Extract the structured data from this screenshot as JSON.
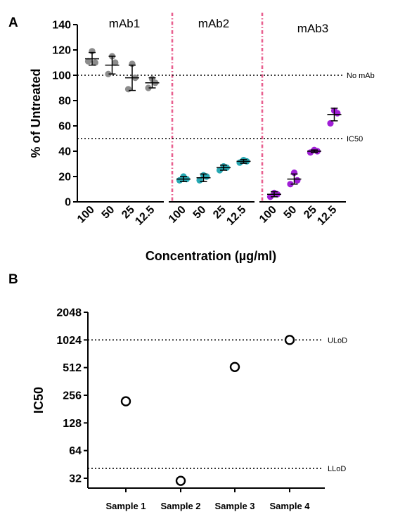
{
  "panels": {
    "a": "A",
    "b": "B"
  },
  "chart_data": [
    {
      "type": "scatter",
      "ylabel": "% of Untreated",
      "xlabel": "Concentration (µg/ml)",
      "ylim": [
        0,
        140
      ],
      "yticks": [
        "0",
        "20",
        "40",
        "60",
        "80",
        "100",
        "120",
        "140"
      ],
      "categories": [
        "100",
        "50",
        "25",
        "12.5"
      ],
      "reference_lines": [
        {
          "label": "No mAb",
          "y": 100
        },
        {
          "label": "IC50",
          "y": 50
        }
      ],
      "groups": [
        {
          "name": "mAb1",
          "color": "#8c8c8c",
          "points": [
            [
              111,
              110,
              119
            ],
            [
              101,
              110,
              115
            ],
            [
              89,
              98,
              109
            ],
            [
              90,
              94,
              97
            ]
          ],
          "mean": [
            113,
            108,
            98,
            94
          ],
          "sd": [
            5,
            7,
            10,
            4
          ]
        },
        {
          "name": "mAb2",
          "color": "#27a8b3",
          "points": [
            [
              17,
              18,
              20
            ],
            [
              17,
              20,
              21
            ],
            [
              25,
              27,
              28
            ],
            [
              31,
              32,
              33
            ]
          ],
          "mean": [
            18,
            19,
            27,
            32
          ],
          "sd": [
            2,
            3,
            2,
            1.5
          ]
        },
        {
          "name": "mAb3",
          "color": "#a01ed6",
          "points": [
            [
              4,
              6,
              7
            ],
            [
              14,
              17,
              23
            ],
            [
              39,
              40,
              41
            ],
            [
              62,
              70,
              72
            ]
          ],
          "mean": [
            6,
            18,
            40,
            69
          ],
          "sd": [
            2,
            4,
            1,
            5
          ]
        }
      ]
    },
    {
      "type": "scatter",
      "ylabel": "IC50",
      "yscale": "log2",
      "ylim": [
        25,
        2048
      ],
      "yticks": [
        "32",
        "64",
        "128",
        "256",
        "512",
        "1024",
        "2048"
      ],
      "categories": [
        "Sample 1",
        "Sample 2",
        "Sample 3",
        "Sample 4"
      ],
      "values": [
        220,
        30,
        520,
        1024
      ],
      "reference_lines": [
        {
          "label": "ULoD",
          "y": 1024
        },
        {
          "label": "LLoD",
          "y": 41
        }
      ]
    }
  ]
}
